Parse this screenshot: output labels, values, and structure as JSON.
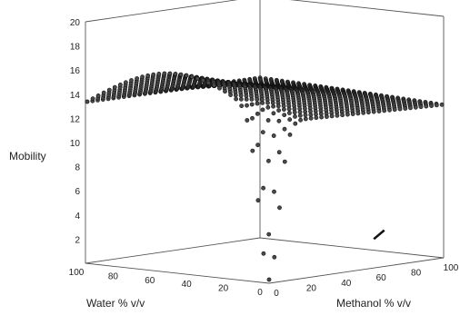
{
  "chart_data": {
    "type": "surface3d",
    "zlabel": "Mobility",
    "xlabel": "Water % v/v",
    "ylabel": "Methanol % v/v",
    "z_ticks": [
      "2",
      "4",
      "6",
      "8",
      "10",
      "12",
      "14",
      "16",
      "18",
      "20"
    ],
    "x_ticks": [
      "0",
      "20",
      "40",
      "60",
      "80",
      "100"
    ],
    "y_ticks": [
      "0",
      "20",
      "40",
      "60",
      "80",
      "100"
    ],
    "zlim": [
      0,
      20
    ],
    "xlim": [
      0,
      100
    ],
    "ylim": [
      0,
      100
    ],
    "surface_points": [
      {
        "water": 100,
        "methanol": 0,
        "mobility": 13.2
      },
      {
        "water": 80,
        "methanol": 0,
        "mobility": 15.0
      },
      {
        "water": 60,
        "methanol": 0,
        "mobility": 16.5
      },
      {
        "water": 40,
        "methanol": 0,
        "mobility": 16.0
      },
      {
        "water": 20,
        "methanol": 0,
        "mobility": 13.0
      },
      {
        "water": 0,
        "methanol": 0,
        "mobility": 0.2
      },
      {
        "water": 0,
        "methanol": 20,
        "mobility": 12.0
      },
      {
        "water": 0,
        "methanol": 40,
        "mobility": 13.0
      },
      {
        "water": 0,
        "methanol": 60,
        "mobility": 13.2
      },
      {
        "water": 0,
        "methanol": 80,
        "mobility": 13.0
      },
      {
        "water": 0,
        "methanol": 100,
        "mobility": 12.8
      }
    ],
    "grid": false
  }
}
